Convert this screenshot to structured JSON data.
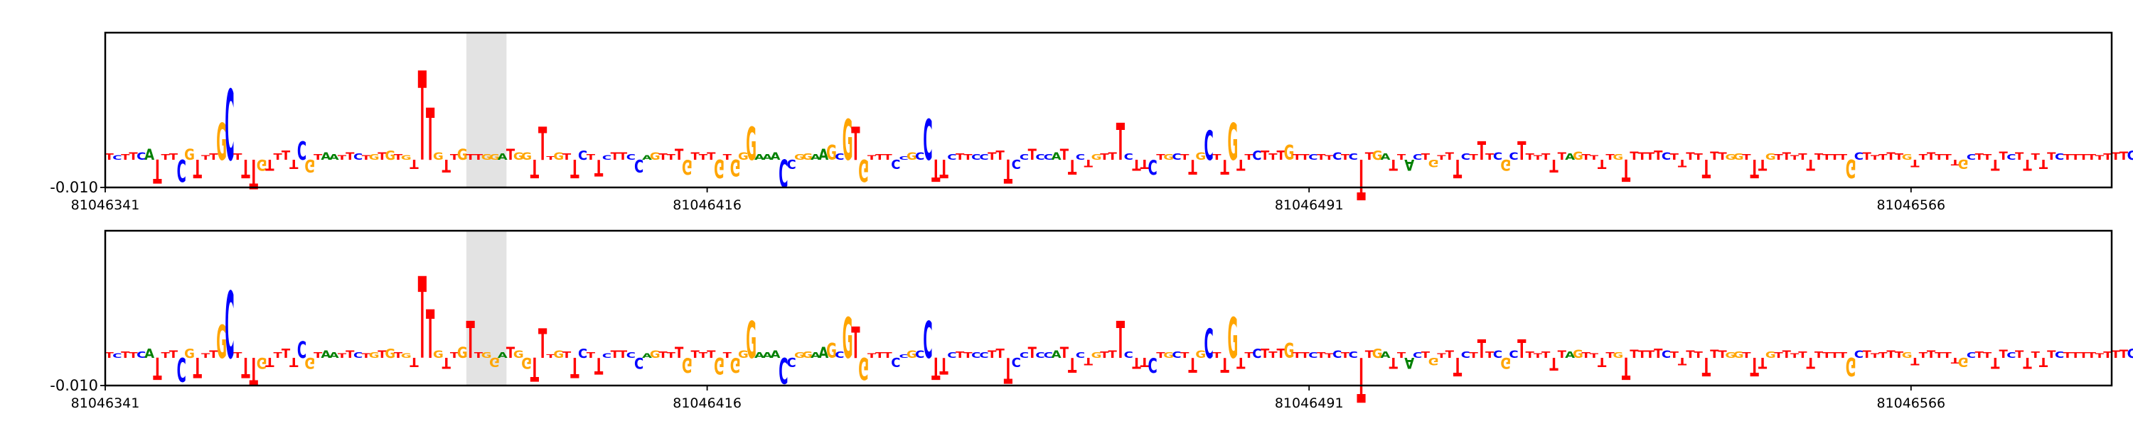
{
  "chart_data": [
    {
      "type": "sequence-logo",
      "track": "top",
      "ytick_label": "-0.010",
      "xticks": [
        {
          "value": 81046341,
          "label": "81046341"
        },
        {
          "value": 81046416,
          "label": "81046416"
        },
        {
          "value": 81046491,
          "label": "81046491"
        },
        {
          "value": 81046566,
          "label": "81046566"
        }
      ],
      "xlim": [
        81046341,
        81046591
      ],
      "highlight": [
        81046386,
        81046391
      ],
      "sequence": "TCTTCATTTCGTTTGCTTTGTTTTCGTAATTCTGTGTGTTTGTTGTTGGATGGTTTGTTCTTCTTCCAGTTTGTTTGTGGGAAACCGGAAGCGTGTTTCCGCCTTCTTCCTTTCCTCCATTCTGTTTCTTCTGCTTGCTTGTTCTTTGTTCTTCTCTTGATTACTGTTTCTTTCGCTTTTTTAGTTTTGTTTTTCTTTTTTTGGTTTGTTTTTTTTTGCTTTTTGTTTTTTGCTTTTCTTTTTCTTTTTTTTCT",
      "heights": [
        3.5,
        2.5,
        3,
        4,
        4,
        6,
        -13,
        3,
        3.5,
        -12,
        6,
        -10,
        2.5,
        3.5,
        20,
        38,
        3.5,
        -10,
        -16,
        -6,
        -6,
        3.5,
        5,
        -5,
        10,
        -7,
        3,
        4,
        3,
        2.5,
        4,
        3.5,
        2.5,
        3,
        4,
        5,
        3,
        2.5,
        -5,
        48,
        28,
        4,
        -7,
        3,
        6,
        3,
        3,
        3,
        3,
        3.5,
        6,
        4,
        4,
        -10,
        18,
        2,
        4,
        3.5,
        -10,
        5,
        3,
        -9,
        2.5,
        4,
        4,
        3,
        -7,
        2.5,
        4,
        3.5,
        3,
        6,
        -8,
        4,
        3,
        4,
        -10,
        3,
        -9,
        4,
        18,
        3,
        3,
        4,
        -15,
        -5,
        3,
        3.5,
        3,
        6,
        8,
        3.5,
        22,
        18,
        -12,
        2.5,
        3,
        3,
        -5,
        2,
        4,
        4,
        22,
        -12,
        -10,
        3,
        3.5,
        3,
        3,
        3,
        4,
        5,
        -13,
        -5,
        3,
        6,
        3,
        3,
        4,
        6,
        -8,
        3,
        -4,
        3,
        3.5,
        4,
        20,
        3.5,
        -6,
        -5,
        -8,
        3,
        3,
        3.5,
        3,
        -8,
        4,
        16,
        3,
        -8,
        20,
        -6,
        3,
        5,
        5,
        3.5,
        5,
        8,
        3,
        3,
        3,
        3,
        2.5,
        4,
        3,
        3.5,
        -22,
        4,
        5,
        3.5,
        -6,
        3,
        -6,
        3,
        3.5,
        -4,
        2.5,
        4,
        -10,
        3.5,
        3,
        10,
        3.5,
        4,
        -6,
        4,
        10,
        3.5,
        2.5,
        3.5,
        -7,
        4,
        3.5,
        4.5,
        3,
        2.5,
        -5,
        3,
        3,
        -12,
        4.5,
        4,
        4,
        5,
        4,
        3.5,
        -4,
        4,
        3.5,
        -10,
        4.5,
        4,
        3,
        3.5,
        3,
        -10,
        -6,
        3.5,
        3,
        4,
        2.5,
        3.5,
        -6,
        3.5,
        3,
        3,
        3,
        -10,
        4,
        4,
        2.5,
        3,
        4,
        3.5,
        3,
        -4,
        3,
        4,
        3,
        3,
        -3,
        -5,
        3,
        3.5,
        3,
        -6,
        4.5,
        3,
        4,
        -6,
        3.5,
        -5,
        4,
        3.5,
        3,
        3,
        3,
        3,
        2.5,
        3.5,
        4,
        4.5,
        5,
        4,
        4,
        3,
        3.5,
        3,
        2.5,
        3,
        3.5,
        3,
        5
      ]
    },
    {
      "type": "sequence-logo",
      "track": "bottom",
      "ytick_label": "-0.010",
      "xticks": [
        {
          "value": 81046341,
          "label": "81046341"
        },
        {
          "value": 81046416,
          "label": "81046416"
        },
        {
          "value": 81046491,
          "label": "81046491"
        },
        {
          "value": 81046566,
          "label": "81046566"
        }
      ],
      "xlim": [
        81046341,
        81046591
      ],
      "highlight": [
        81046386,
        81046391
      ],
      "sequence": "TCTTCATTTCGTTTGCTTTGTTTTCGTAATTCTGTGTGTTTGTTGTTGGATGGTTTGTTCTTCTTCCAGTTTGTTTGTGGGAAACCGGAAGCGTGTTTCCGCCTTCTTCCTTTCCTCCATTCTGTTTCTTCTGCTTGCTTGTTCTTTGTTCTTCTCTTGATTACTGTTTCTTTCGCTTTTTTAGTTTTGTTTTTCTTTTTTTGGTTTGTTTTTTTTTGCTTTTTGTTTTTTGCTTTTCTTTTTCTTTTTTTTCT",
      "heights": [
        3,
        2.5,
        3.5,
        3,
        3.5,
        5,
        -12,
        3,
        4,
        -13,
        5,
        -11,
        2.5,
        4,
        18,
        36,
        3,
        -11,
        -15,
        -6,
        -5,
        3,
        5,
        -5,
        9,
        -6,
        3,
        4,
        3,
        2.5,
        4,
        3,
        2.5,
        3,
        4,
        5,
        3,
        2.5,
        -5,
        44,
        26,
        4,
        -6,
        3,
        6,
        20,
        3,
        3,
        -5,
        3,
        6,
        4,
        -6,
        -13,
        16,
        2,
        4,
        3.5,
        -11,
        5,
        3,
        -9,
        2.5,
        4,
        4,
        3,
        -6,
        2.5,
        4,
        3.5,
        3,
        6,
        -8,
        4,
        3,
        4,
        -9,
        3,
        -8,
        4,
        20,
        3,
        3,
        4,
        -14,
        -5,
        3,
        3.5,
        3,
        6,
        8,
        3.5,
        22,
        17,
        -12,
        2.5,
        3,
        3,
        -5,
        2,
        4,
        4,
        20,
        -12,
        -9,
        3,
        3.5,
        3,
        3,
        3,
        4,
        5,
        -14,
        -5,
        3,
        6,
        3,
        3,
        4,
        6,
        -8,
        3,
        -4,
        3,
        3.5,
        4,
        20,
        3.5,
        -6,
        -5,
        -8,
        3,
        3,
        3.5,
        3,
        -8,
        4,
        16,
        3,
        -8,
        22,
        -6,
        3,
        5,
        5,
        3.5,
        5,
        8,
        3,
        3,
        3,
        3,
        2.5,
        4,
        3,
        3.5,
        -24,
        4,
        5,
        3.5,
        -6,
        3,
        -6,
        3,
        3.5,
        -4,
        2.5,
        4,
        -10,
        3.5,
        3,
        10,
        3.5,
        4,
        -6,
        4,
        10,
        3.5,
        2.5,
        3.5,
        -7,
        4,
        3.5,
        4.5,
        3,
        2.5,
        -5,
        3,
        3,
        -12,
        4.5,
        4,
        4,
        5,
        4,
        3.5,
        -4,
        4,
        3.5,
        -10,
        4.5,
        4,
        3,
        3.5,
        3,
        -10,
        -6,
        3.5,
        3,
        4,
        2.5,
        3.5,
        -6,
        3.5,
        3,
        3,
        3,
        -10,
        4,
        4,
        2.5,
        3,
        4,
        3.5,
        3,
        -4,
        3,
        4,
        3,
        3,
        -3,
        -5,
        3,
        3.5,
        3,
        -6,
        4.5,
        3,
        4,
        -6,
        3.5,
        -5,
        4,
        3.5,
        3,
        3,
        3,
        3,
        2.5,
        3.5,
        4,
        4.5,
        5,
        4,
        4,
        3,
        3.5,
        3,
        2.5,
        3,
        3.5,
        3,
        5
      ]
    }
  ],
  "colors": {
    "A": "#008000",
    "C": "#0000ff",
    "G": "#ffa500",
    "T": "#ff0000"
  },
  "highlight_color": "#e3e3e3"
}
